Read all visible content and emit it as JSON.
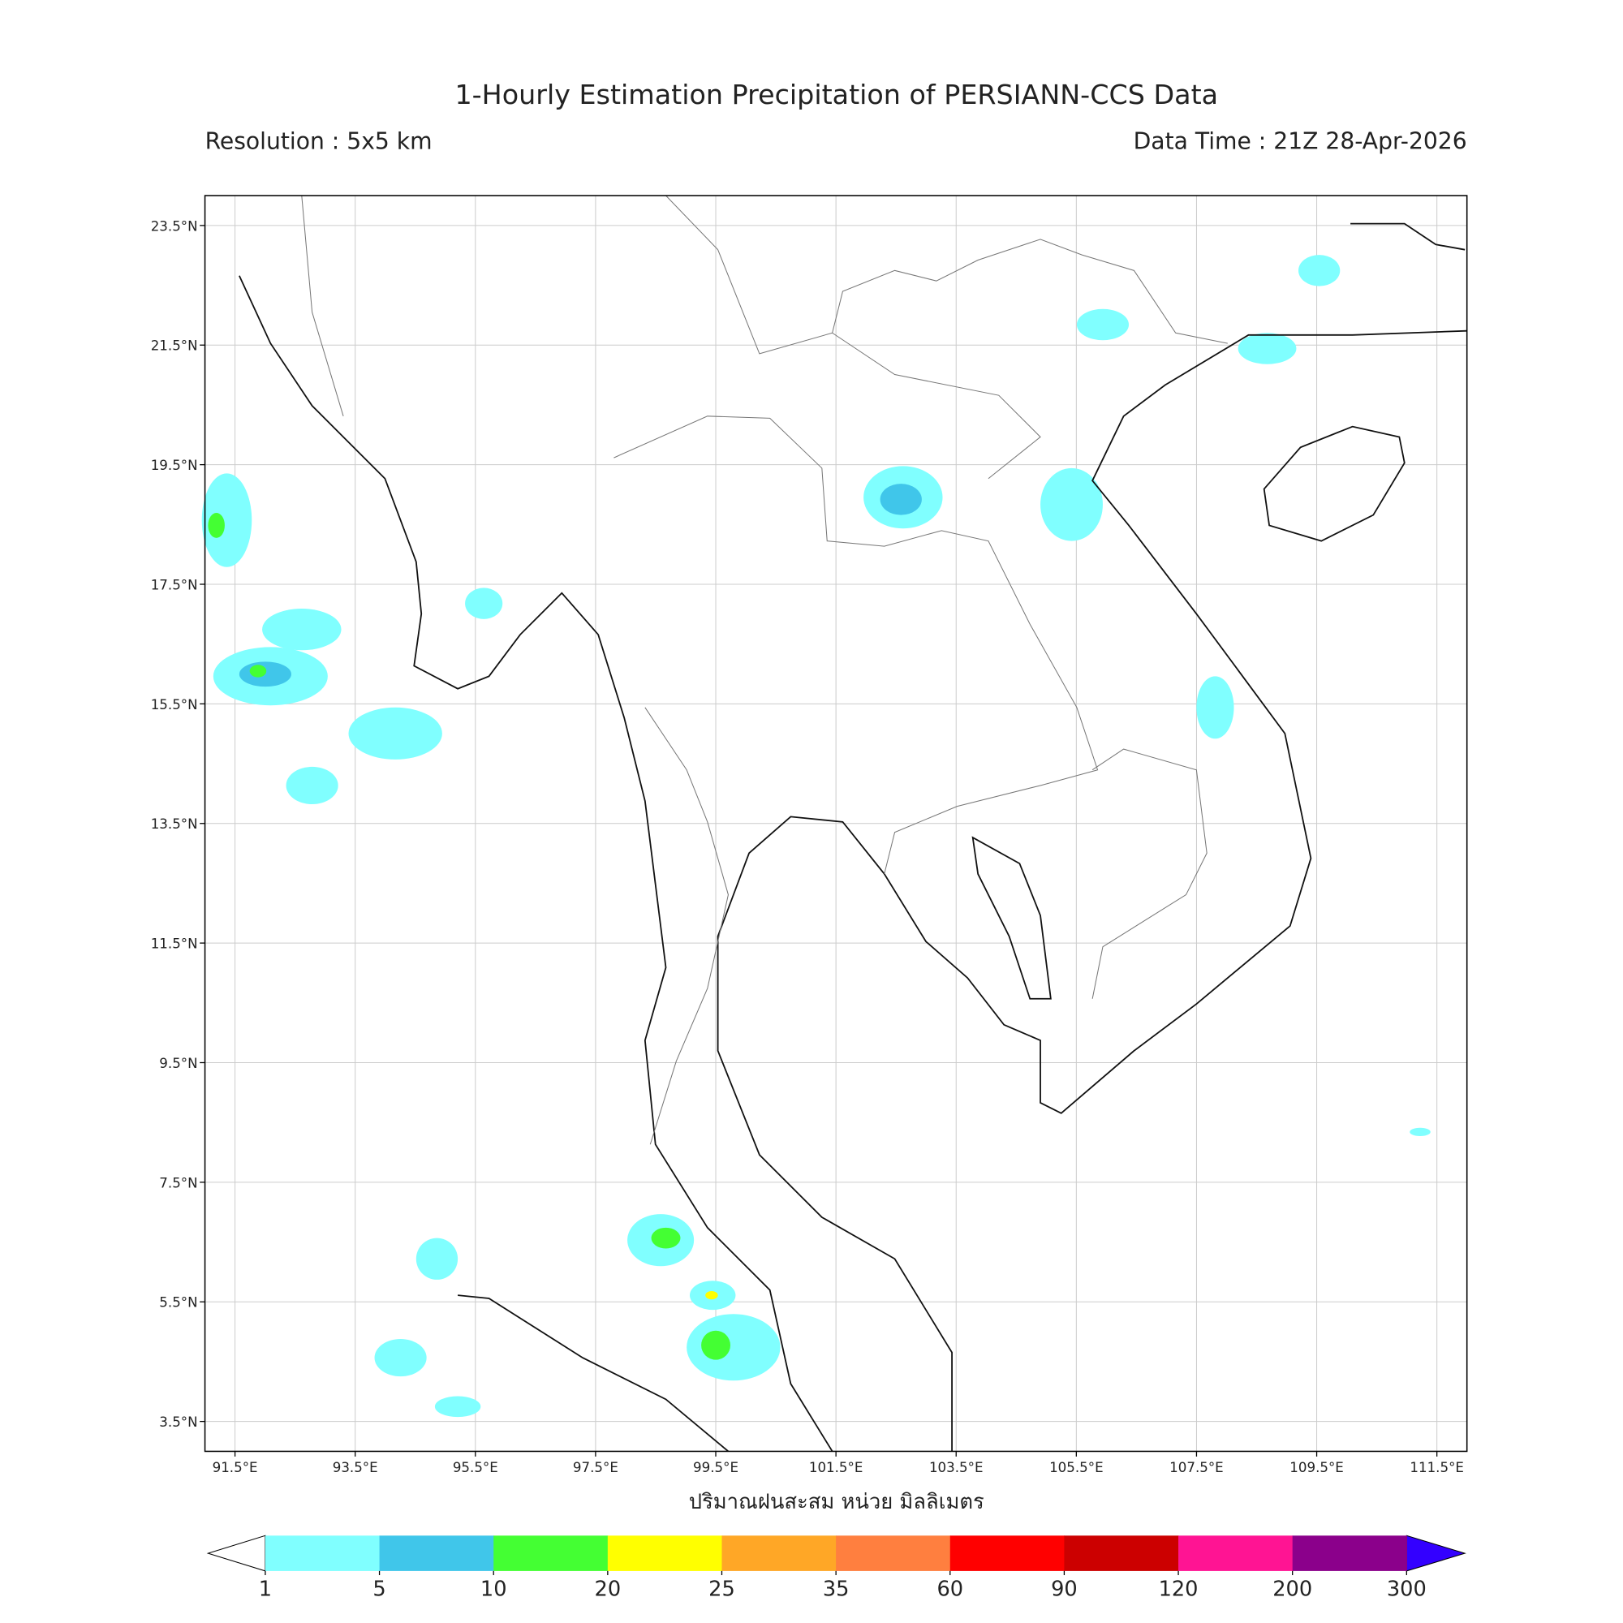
{
  "header": {
    "title": "1-Hourly Estimation Precipitation of PERSIANN-CCS Data",
    "resolution": "Resolution : 5x5 km",
    "data_time": "Data Time : 21Z 28-Apr-2026"
  },
  "map": {
    "lon_lim": [
      91,
      112
    ],
    "lat_lim": [
      3,
      24
    ],
    "lon_ticks": [
      {
        "value": 91.5,
        "label": "91.5°E"
      },
      {
        "value": 93.5,
        "label": "93.5°E"
      },
      {
        "value": 95.5,
        "label": "95.5°E"
      },
      {
        "value": 97.5,
        "label": "97.5°E"
      },
      {
        "value": 99.5,
        "label": "99.5°E"
      },
      {
        "value": 101.5,
        "label": "101.5°E"
      },
      {
        "value": 103.5,
        "label": "103.5°E"
      },
      {
        "value": 105.5,
        "label": "105.5°E"
      },
      {
        "value": 107.5,
        "label": "107.5°E"
      },
      {
        "value": 109.5,
        "label": "109.5°E"
      },
      {
        "value": 111.5,
        "label": "111.5°E"
      }
    ],
    "lat_ticks": [
      {
        "value": 23.5,
        "label": "23.5°N"
      },
      {
        "value": 21.5,
        "label": "21.5°N"
      },
      {
        "value": 19.5,
        "label": "19.5°N"
      },
      {
        "value": 17.5,
        "label": "17.5°N"
      },
      {
        "value": 15.5,
        "label": "15.5°N"
      },
      {
        "value": 13.5,
        "label": "13.5°N"
      },
      {
        "value": 11.5,
        "label": "11.5°N"
      },
      {
        "value": 9.5,
        "label": "9.5°N"
      },
      {
        "value": 7.5,
        "label": "7.5°N"
      },
      {
        "value": 5.5,
        "label": "5.5°N"
      },
      {
        "value": 3.5,
        "label": "3.5°N"
      }
    ],
    "grid": true
  },
  "colorbar": {
    "label": "ปริมาณฝนสะสม หน่วย มิลลิเมตร",
    "levels": [
      1,
      5,
      10,
      20,
      25,
      35,
      60,
      90,
      120,
      200,
      300
    ],
    "colors": [
      "#80ffff",
      "#40c6ea",
      "#44ff33",
      "#ffff00",
      "#ffa726",
      "#ff7f3f",
      "#ff0000",
      "#cc0000",
      "#ff1493",
      "#8b008b"
    ],
    "under_color": "#ffffff",
    "over_color": "#3300ff"
  }
}
